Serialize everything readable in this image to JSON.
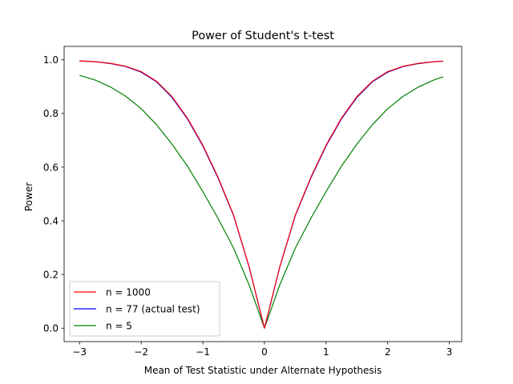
{
  "chart_data": {
    "type": "line",
    "title": "Power of Student's t-test",
    "xlabel": "Mean of Test Statistic under Alternate Hypothesis",
    "ylabel": "Power",
    "xlim": [
      -3.25,
      3.2
    ],
    "ylim": [
      -0.05,
      1.05
    ],
    "xticks": [
      -3,
      -2,
      -1,
      0,
      1,
      2,
      3
    ],
    "xtick_labels": [
      "−3",
      "−2",
      "−1",
      "0",
      "1",
      "2",
      "3"
    ],
    "yticks": [
      0.0,
      0.2,
      0.4,
      0.6,
      0.8,
      1.0
    ],
    "ytick_labels": [
      "0.0",
      "0.2",
      "0.4",
      "0.6",
      "0.8",
      "1.0"
    ],
    "grid": false,
    "legend_position": "lower-left",
    "x": [
      -3.0,
      -2.75,
      -2.5,
      -2.25,
      -2.0,
      -1.75,
      -1.5,
      -1.25,
      -1.0,
      -0.75,
      -0.5,
      -0.25,
      0.0,
      0.25,
      0.5,
      0.75,
      1.0,
      1.25,
      1.5,
      1.75,
      2.0,
      2.25,
      2.5,
      2.75,
      2.9
    ],
    "series": [
      {
        "name": "n = 1000",
        "color": "#ff0000",
        "values": [
          0.996,
          0.993,
          0.987,
          0.976,
          0.956,
          0.92,
          0.863,
          0.783,
          0.682,
          0.561,
          0.421,
          0.23,
          0.0,
          0.23,
          0.421,
          0.561,
          0.682,
          0.783,
          0.863,
          0.92,
          0.956,
          0.976,
          0.987,
          0.993,
          0.995
        ]
      },
      {
        "name": "n = 77 (actual test)",
        "color": "#0000ff",
        "values": [
          0.996,
          0.993,
          0.986,
          0.975,
          0.954,
          0.918,
          0.86,
          0.78,
          0.679,
          0.558,
          0.419,
          0.229,
          0.0,
          0.229,
          0.419,
          0.558,
          0.679,
          0.78,
          0.86,
          0.918,
          0.954,
          0.975,
          0.986,
          0.993,
          0.995
        ]
      },
      {
        "name": "n = 5",
        "color": "#008000",
        "values": [
          0.942,
          0.925,
          0.899,
          0.864,
          0.818,
          0.758,
          0.686,
          0.604,
          0.509,
          0.408,
          0.298,
          0.162,
          0.0,
          0.162,
          0.298,
          0.408,
          0.509,
          0.604,
          0.686,
          0.758,
          0.818,
          0.864,
          0.899,
          0.925,
          0.937
        ]
      }
    ]
  }
}
